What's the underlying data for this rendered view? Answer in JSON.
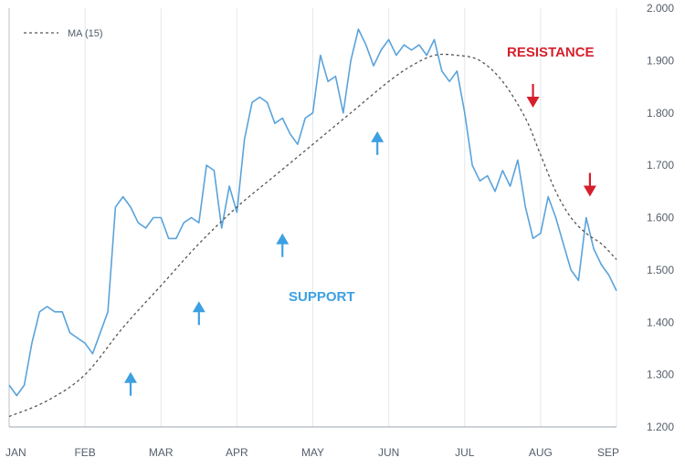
{
  "chart_data": {
    "type": "line",
    "x_categories": [
      "JAN",
      "FEB",
      "MAR",
      "APR",
      "MAY",
      "JUN",
      "JUL",
      "AUG",
      "SEP"
    ],
    "y_ticks": [
      "2.000",
      "1.900",
      "1.800",
      "1.700",
      "1.600",
      "1.500",
      "1.400",
      "1.300",
      "1.200"
    ],
    "ylim": [
      1.2,
      2.0
    ],
    "grid": "vertical",
    "legend": {
      "position": "top-left",
      "label": "MA (15)"
    },
    "colors": {
      "price": "#5aa3db",
      "ma": "#555555",
      "support": "#3da0e2",
      "resistance": "#d61f2c",
      "grid": "#e4e8ee",
      "axis": "#9aa4b0"
    },
    "series": [
      {
        "name": "",
        "style": "solid",
        "x": [
          0,
          0.1,
          0.2,
          0.3,
          0.4,
          0.5,
          0.6,
          0.7,
          0.8,
          0.9,
          1.0,
          1.1,
          1.2,
          1.3,
          1.4,
          1.5,
          1.6,
          1.7,
          1.8,
          1.9,
          2.0,
          2.1,
          2.2,
          2.3,
          2.4,
          2.5,
          2.6,
          2.7,
          2.8,
          2.9,
          3.0,
          3.1,
          3.2,
          3.3,
          3.4,
          3.5,
          3.6,
          3.7,
          3.8,
          3.9,
          4.0,
          4.1,
          4.2,
          4.3,
          4.4,
          4.5,
          4.6,
          4.7,
          4.8,
          4.9,
          5.0,
          5.1,
          5.2,
          5.3,
          5.4,
          5.5,
          5.6,
          5.7,
          5.8,
          5.9,
          6.0,
          6.1,
          6.2,
          6.3,
          6.4,
          6.5,
          6.6,
          6.7,
          6.8,
          6.9,
          7.0,
          7.1,
          7.2,
          7.3,
          7.4,
          7.5,
          7.6,
          7.7,
          7.8,
          7.9,
          8.0
        ],
        "values": [
          1.28,
          1.26,
          1.28,
          1.36,
          1.42,
          1.43,
          1.42,
          1.42,
          1.38,
          1.37,
          1.36,
          1.34,
          1.38,
          1.42,
          1.62,
          1.64,
          1.62,
          1.59,
          1.58,
          1.6,
          1.6,
          1.56,
          1.56,
          1.59,
          1.6,
          1.59,
          1.7,
          1.69,
          1.58,
          1.66,
          1.61,
          1.75,
          1.82,
          1.83,
          1.82,
          1.78,
          1.79,
          1.76,
          1.74,
          1.79,
          1.8,
          1.91,
          1.86,
          1.87,
          1.8,
          1.9,
          1.96,
          1.93,
          1.89,
          1.92,
          1.94,
          1.91,
          1.93,
          1.92,
          1.93,
          1.91,
          1.94,
          1.88,
          1.86,
          1.88,
          1.8,
          1.7,
          1.67,
          1.68,
          1.65,
          1.69,
          1.66,
          1.71,
          1.62,
          1.56,
          1.57,
          1.64,
          1.6,
          1.55,
          1.5,
          1.48,
          1.6,
          1.54,
          1.51,
          1.49,
          1.46
        ]
      },
      {
        "name": "MA (15)",
        "style": "dashed",
        "x": [
          0,
          0.5,
          1.0,
          1.5,
          2.0,
          2.5,
          3.0,
          3.5,
          4.0,
          4.5,
          5.0,
          5.3,
          5.6,
          5.9,
          6.2,
          6.5,
          6.8,
          7.0,
          7.2,
          7.4,
          7.6,
          7.8,
          8.0
        ],
        "values": [
          1.22,
          1.25,
          1.3,
          1.39,
          1.47,
          1.55,
          1.62,
          1.68,
          1.74,
          1.8,
          1.86,
          1.89,
          1.91,
          1.91,
          1.9,
          1.86,
          1.79,
          1.72,
          1.65,
          1.6,
          1.57,
          1.55,
          1.52
        ]
      }
    ],
    "annotations": {
      "support_label": "SUPPORT",
      "resistance_label": "RESISTANCE",
      "support_arrows": [
        {
          "x": 1.6,
          "y": 1.305
        },
        {
          "x": 2.5,
          "y": 1.44
        },
        {
          "x": 3.6,
          "y": 1.57
        },
        {
          "x": 4.85,
          "y": 1.765
        }
      ],
      "resistance_arrows": [
        {
          "x": 6.9,
          "y": 1.81
        },
        {
          "x": 7.65,
          "y": 1.64
        }
      ]
    }
  }
}
